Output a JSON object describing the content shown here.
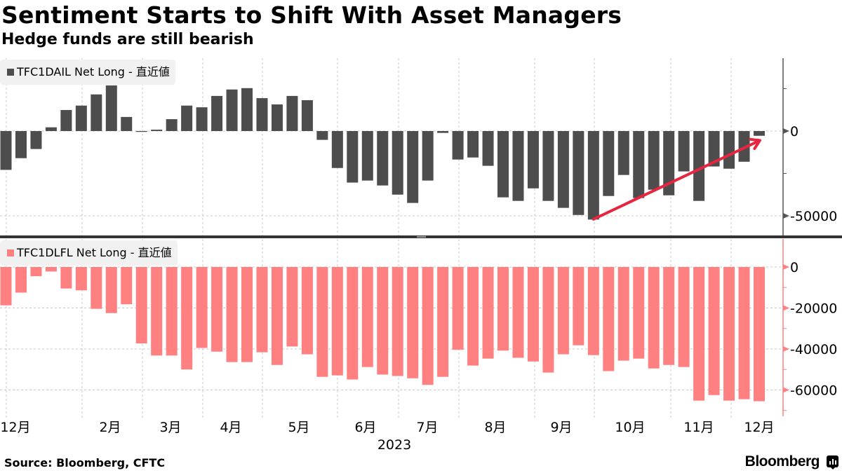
{
  "header": {
    "title": "Sentiment Starts to Shift With Asset Managers",
    "subtitle": "Hedge funds are still bearish"
  },
  "footer": {
    "source": "Source: Bloomberg, CFTC",
    "brand": "Bloomberg"
  },
  "colors": {
    "top_series": "#4d4d4d",
    "bottom_series": "#ff8080",
    "arrow": "#e8253f",
    "divider": "#333333",
    "legend_bg": "#f1f1f1"
  },
  "chart_data": [
    {
      "type": "bar",
      "panel": "top",
      "legend": "TFC1DAIL Net Long - 直近値",
      "legend_placement": "top-left",
      "ylim": [
        -62000,
        42000
      ],
      "y_ticks": [
        0,
        -50000
      ],
      "y_tick_labels": [
        "0",
        "-50000"
      ],
      "y_minor_ticks": [
        25000,
        -25000
      ],
      "grid": true,
      "annotation": {
        "type": "arrow",
        "from_bar_index": 39,
        "from_value": -52000,
        "to_bar_index": 50,
        "to_value": -5500,
        "meaning": "upward trend"
      },
      "values": [
        -22900,
        -16000,
        -10600,
        2200,
        12400,
        15000,
        21600,
        26900,
        8300,
        -500,
        800,
        7000,
        15000,
        14000,
        20700,
        24500,
        25300,
        19400,
        15700,
        20700,
        18200,
        -5200,
        -21800,
        -30400,
        -29200,
        -32100,
        -37500,
        -42400,
        -29200,
        -1100,
        -16800,
        -15600,
        -20500,
        -39100,
        -41200,
        -33800,
        -41200,
        -45300,
        -49500,
        -52200,
        -38300,
        -25900,
        -39500,
        -34600,
        -37900,
        -23800,
        -41200,
        -20900,
        -22200,
        -18100,
        -2800
      ]
    },
    {
      "type": "bar",
      "panel": "bottom",
      "legend": "TFC1DLFL Net Long - 直近値",
      "legend_placement": "top-left",
      "ylim": [
        -72000,
        4000
      ],
      "y_ticks": [
        0,
        -20000,
        -40000,
        -60000
      ],
      "y_tick_labels": [
        "0",
        "-20000",
        "-40000",
        "-60000"
      ],
      "y_minor_ticks": [
        -10000,
        -30000,
        -50000,
        -70000
      ],
      "grid": true,
      "values": [
        -18700,
        -12500,
        -4500,
        -2200,
        -10500,
        -11400,
        -20400,
        -22500,
        -18200,
        -37300,
        -43200,
        -43200,
        -50000,
        -39500,
        -41300,
        -46400,
        -46400,
        -41600,
        -47800,
        -38800,
        -42600,
        -53600,
        -52900,
        -54900,
        -48800,
        -52500,
        -53200,
        -54300,
        -57500,
        -53600,
        -40400,
        -48100,
        -44700,
        -40800,
        -44300,
        -46100,
        -51500,
        -42600,
        -38200,
        -43000,
        -50800,
        -45700,
        -44700,
        -49500,
        -47800,
        -48800,
        -65200,
        -62500,
        -65200,
        -64500,
        -65500
      ]
    }
  ],
  "x_axis": {
    "month_labels": [
      "12月",
      "2月",
      "3月",
      "4月",
      "5月",
      "6月",
      "7月",
      "8月",
      "9月",
      "10月",
      "11月",
      "12月"
    ],
    "year_label": "2023"
  }
}
